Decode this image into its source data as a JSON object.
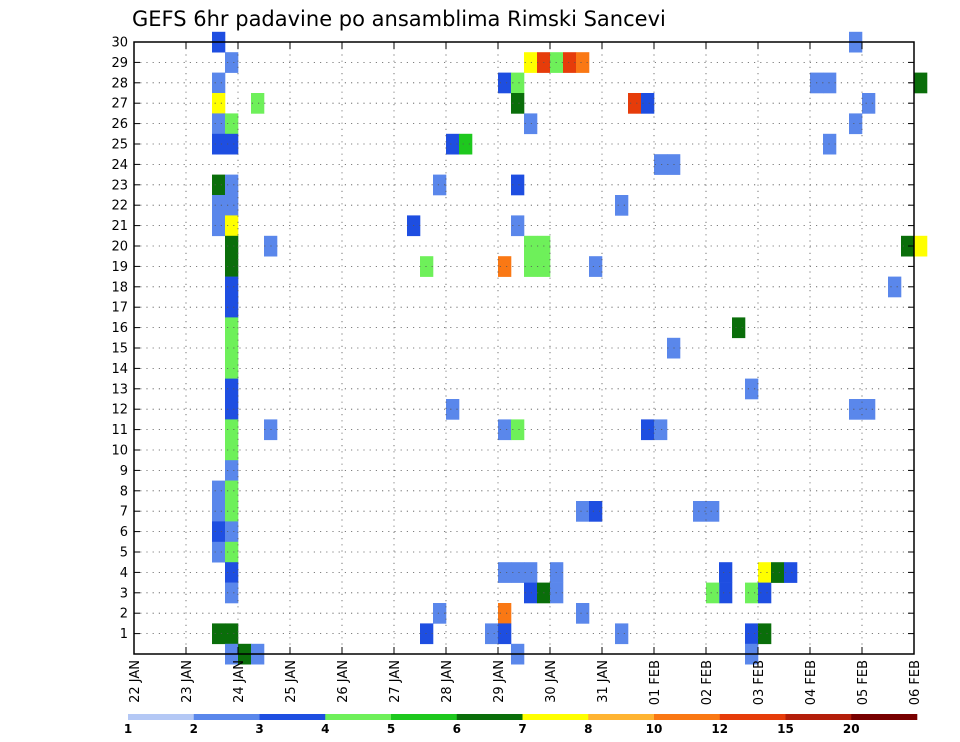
{
  "chart_data": {
    "type": "heatmap",
    "title": "GEFS 6hr padavine po ansamblima Rimski Sancevi",
    "x_tick_labels": [
      "22 JAN",
      "23 JAN",
      "24 JAN",
      "25 JAN",
      "26 JAN",
      "27 JAN",
      "28 JAN",
      "29 JAN",
      "30 JAN",
      "31 JAN",
      "01 FEB",
      "02 FEB",
      "03 FEB",
      "04 FEB",
      "05 FEB",
      "06 FEB"
    ],
    "x_range_days": [
      0,
      15
    ],
    "y_tick_labels": [
      "1",
      "2",
      "3",
      "4",
      "5",
      "6",
      "7",
      "8",
      "9",
      "10",
      "11",
      "12",
      "13",
      "14",
      "15",
      "16",
      "17",
      "18",
      "19",
      "20",
      "21",
      "22",
      "23",
      "24",
      "25",
      "26",
      "27",
      "28",
      "29",
      "30"
    ],
    "y_range": [
      0,
      30
    ],
    "grid": true,
    "legend": {
      "placement": "bottom",
      "colors": [
        "#b4c8f5",
        "#5a87eb",
        "#1e4ee1",
        "#6ef05a",
        "#1ec81e",
        "#0a6e0a",
        "#ffff00",
        "#ffb432",
        "#fa7814",
        "#e63c0a",
        "#b41e0a",
        "#780000"
      ],
      "labels": [
        "1",
        "2",
        "3",
        "4",
        "5",
        "6",
        "7",
        "8",
        "10",
        "12",
        "15",
        "20"
      ]
    },
    "cells": [
      [
        1.5,
        30,
        2
      ],
      [
        1.75,
        29,
        1
      ],
      [
        1.5,
        28,
        1
      ],
      [
        1.5,
        27,
        6
      ],
      [
        2.25,
        27,
        3
      ],
      [
        1.5,
        26,
        1
      ],
      [
        1.75,
        26,
        3
      ],
      [
        1.5,
        25,
        2
      ],
      [
        1.75,
        25,
        2
      ],
      [
        1.5,
        23,
        5
      ],
      [
        1.75,
        23,
        1
      ],
      [
        1.5,
        22,
        1
      ],
      [
        1.75,
        22,
        1
      ],
      [
        1.5,
        21,
        1
      ],
      [
        1.75,
        21,
        6
      ],
      [
        1.75,
        20,
        5
      ],
      [
        2.5,
        20,
        1
      ],
      [
        1.75,
        19,
        5
      ],
      [
        1.75,
        18,
        2
      ],
      [
        1.75,
        17,
        2
      ],
      [
        1.75,
        16,
        3
      ],
      [
        1.75,
        15,
        3
      ],
      [
        1.75,
        14,
        3
      ],
      [
        1.75,
        13,
        2
      ],
      [
        1.75,
        12,
        2
      ],
      [
        2.5,
        11,
        1
      ],
      [
        1.75,
        11,
        3
      ],
      [
        1.75,
        10,
        3
      ],
      [
        1.75,
        9,
        1
      ],
      [
        1.5,
        8,
        1
      ],
      [
        1.75,
        8,
        3
      ],
      [
        1.5,
        7,
        1
      ],
      [
        1.75,
        7,
        3
      ],
      [
        1.5,
        6,
        2
      ],
      [
        1.75,
        6,
        1
      ],
      [
        1.5,
        5,
        1
      ],
      [
        1.75,
        5,
        3
      ],
      [
        1.75,
        4,
        2
      ],
      [
        1.75,
        3,
        1
      ],
      [
        1.5,
        1,
        5
      ],
      [
        1.75,
        1,
        5
      ],
      [
        1.75,
        0,
        1
      ],
      [
        2.0,
        0,
        5
      ],
      [
        2.25,
        0,
        1
      ],
      [
        7.5,
        29,
        6
      ],
      [
        7.75,
        29,
        9
      ],
      [
        8.0,
        29,
        3
      ],
      [
        8.25,
        29,
        9
      ],
      [
        8.5,
        29,
        8
      ],
      [
        7.0,
        28,
        2
      ],
      [
        7.25,
        28,
        3
      ],
      [
        7.25,
        27,
        5
      ],
      [
        7.5,
        26,
        1
      ],
      [
        6.0,
        25,
        2
      ],
      [
        6.25,
        25,
        4
      ],
      [
        5.75,
        23,
        1
      ],
      [
        7.25,
        23,
        2
      ],
      [
        5.25,
        21,
        2
      ],
      [
        7.25,
        21,
        1
      ],
      [
        7.5,
        20,
        3
      ],
      [
        7.75,
        20,
        3
      ],
      [
        7.5,
        19,
        3
      ],
      [
        7.75,
        19,
        3
      ],
      [
        5.5,
        19,
        3
      ],
      [
        7.0,
        19,
        8
      ],
      [
        6.0,
        12,
        1
      ],
      [
        7.0,
        11,
        1
      ],
      [
        7.25,
        11,
        3
      ],
      [
        8.5,
        7,
        1
      ],
      [
        8.75,
        7,
        2
      ],
      [
        7.0,
        4,
        1
      ],
      [
        7.25,
        4,
        1
      ],
      [
        7.5,
        4,
        1
      ],
      [
        8.0,
        4,
        1
      ],
      [
        7.5,
        3,
        2
      ],
      [
        7.75,
        3,
        5
      ],
      [
        8.0,
        3,
        1
      ],
      [
        5.75,
        2,
        1
      ],
      [
        7.0,
        2,
        8
      ],
      [
        8.5,
        2,
        1
      ],
      [
        5.5,
        1,
        2
      ],
      [
        6.75,
        1,
        1
      ],
      [
        7.0,
        1,
        2
      ],
      [
        7.25,
        0,
        1
      ],
      [
        9.5,
        27,
        9
      ],
      [
        9.75,
        27,
        2
      ],
      [
        10.0,
        24,
        1
      ],
      [
        10.25,
        24,
        1
      ],
      [
        9.25,
        22,
        1
      ],
      [
        8.75,
        19,
        1
      ],
      [
        10.25,
        15,
        1
      ],
      [
        9.75,
        11,
        2
      ],
      [
        10.0,
        11,
        1
      ],
      [
        10.75,
        7,
        1
      ],
      [
        11.0,
        7,
        1
      ],
      [
        11.25,
        4,
        2
      ],
      [
        11.25,
        3,
        2
      ],
      [
        11.0,
        3,
        3
      ],
      [
        9.25,
        1,
        1
      ],
      [
        11.75,
        1,
        2
      ],
      [
        12.0,
        1,
        5
      ],
      [
        11.75,
        0,
        1
      ],
      [
        11.5,
        16,
        5
      ],
      [
        11.75,
        13,
        1
      ],
      [
        12.0,
        4,
        6
      ],
      [
        12.25,
        4,
        5
      ],
      [
        12.5,
        4,
        2
      ],
      [
        11.75,
        3,
        3
      ],
      [
        12.0,
        3,
        2
      ],
      [
        13.75,
        30,
        1
      ],
      [
        13.0,
        28,
        1
      ],
      [
        13.25,
        28,
        1
      ],
      [
        15.0,
        28,
        5
      ],
      [
        14.0,
        27,
        1
      ],
      [
        13.75,
        26,
        1
      ],
      [
        13.25,
        25,
        1
      ],
      [
        14.75,
        20,
        5
      ],
      [
        15.0,
        20,
        6
      ],
      [
        14.5,
        18,
        1
      ],
      [
        13.75,
        12,
        1
      ],
      [
        14.0,
        12,
        1
      ]
    ]
  }
}
